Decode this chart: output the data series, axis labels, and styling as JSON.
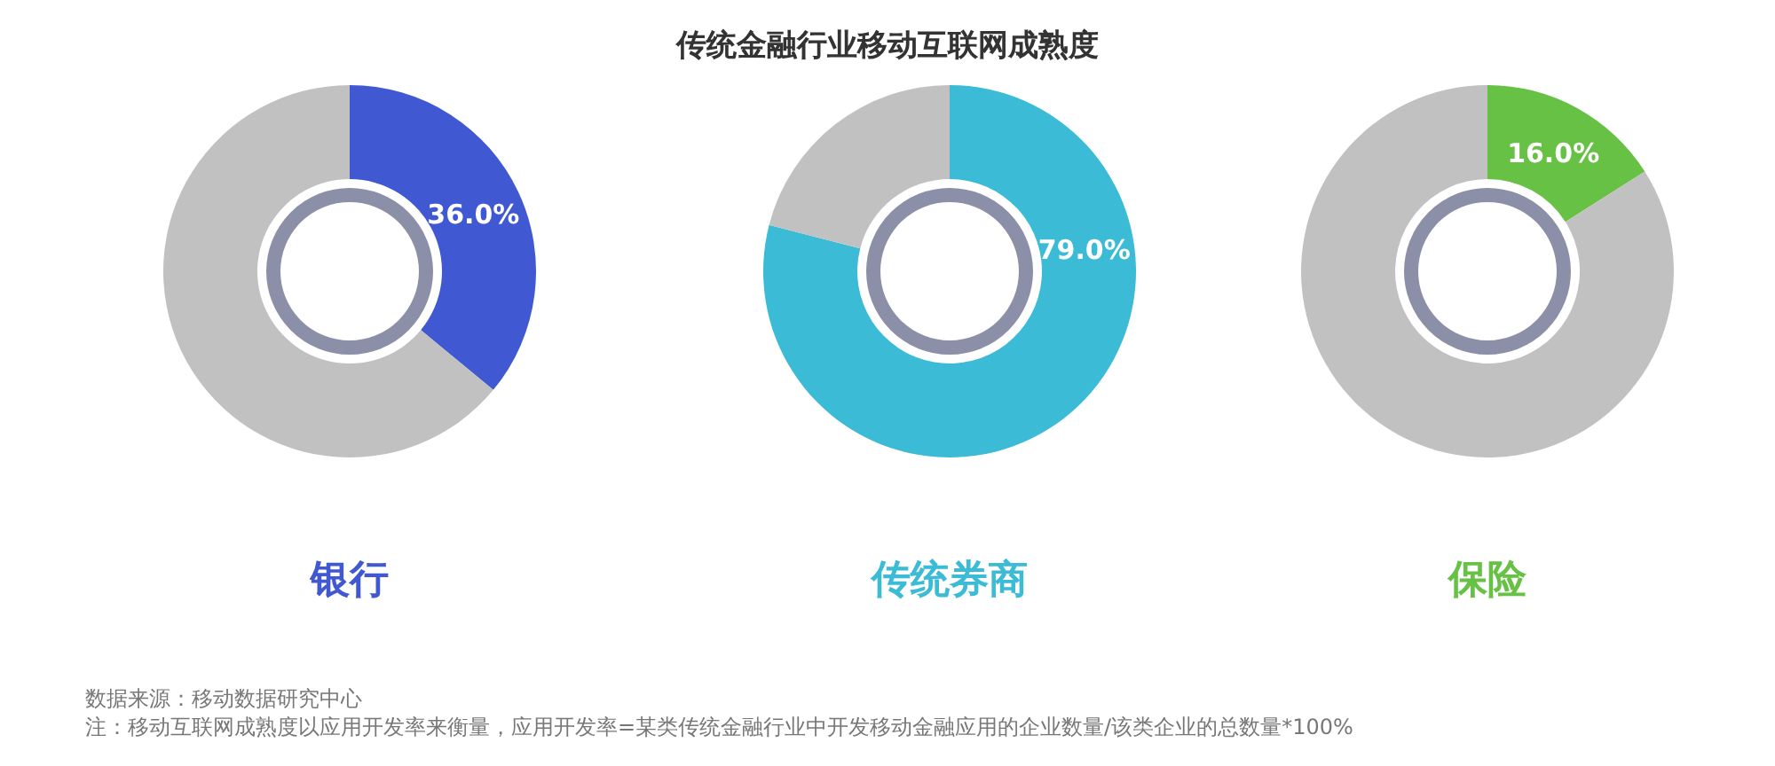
{
  "chart_data": [
    {
      "type": "donut",
      "xlabel": "银行",
      "categories": [
        null,
        null
      ],
      "values": [
        36,
        64
      ],
      "colors": [
        "#4059d3",
        "#c1c1c1"
      ],
      "value_labels": [
        "36.0%",
        null
      ],
      "annotations": [
        "数据来源：移动数据研究中心",
        "注：移动互联网成熟度以应用开发率来衡量，应用开发率=某类传统金融行业中开发移动金融应用的企业数量/该类企业的总数量*100%"
      ]
    },
    {
      "type": "donut",
      "title": "传统金融行业移动互联网成熟度",
      "xlabel": "传统券商",
      "categories": [
        null,
        null
      ],
      "values": [
        79,
        21
      ],
      "colors": [
        "#3bbbd5",
        "#c1c1c1"
      ],
      "value_labels": [
        "79.0%",
        null
      ]
    },
    {
      "type": "donut",
      "xlabel": "保险",
      "categories": [
        null,
        null
      ],
      "values": [
        16,
        84
      ],
      "colors": [
        "#66c144",
        "#c1c1c1"
      ],
      "value_labels": [
        "16.0%",
        null
      ]
    }
  ]
}
